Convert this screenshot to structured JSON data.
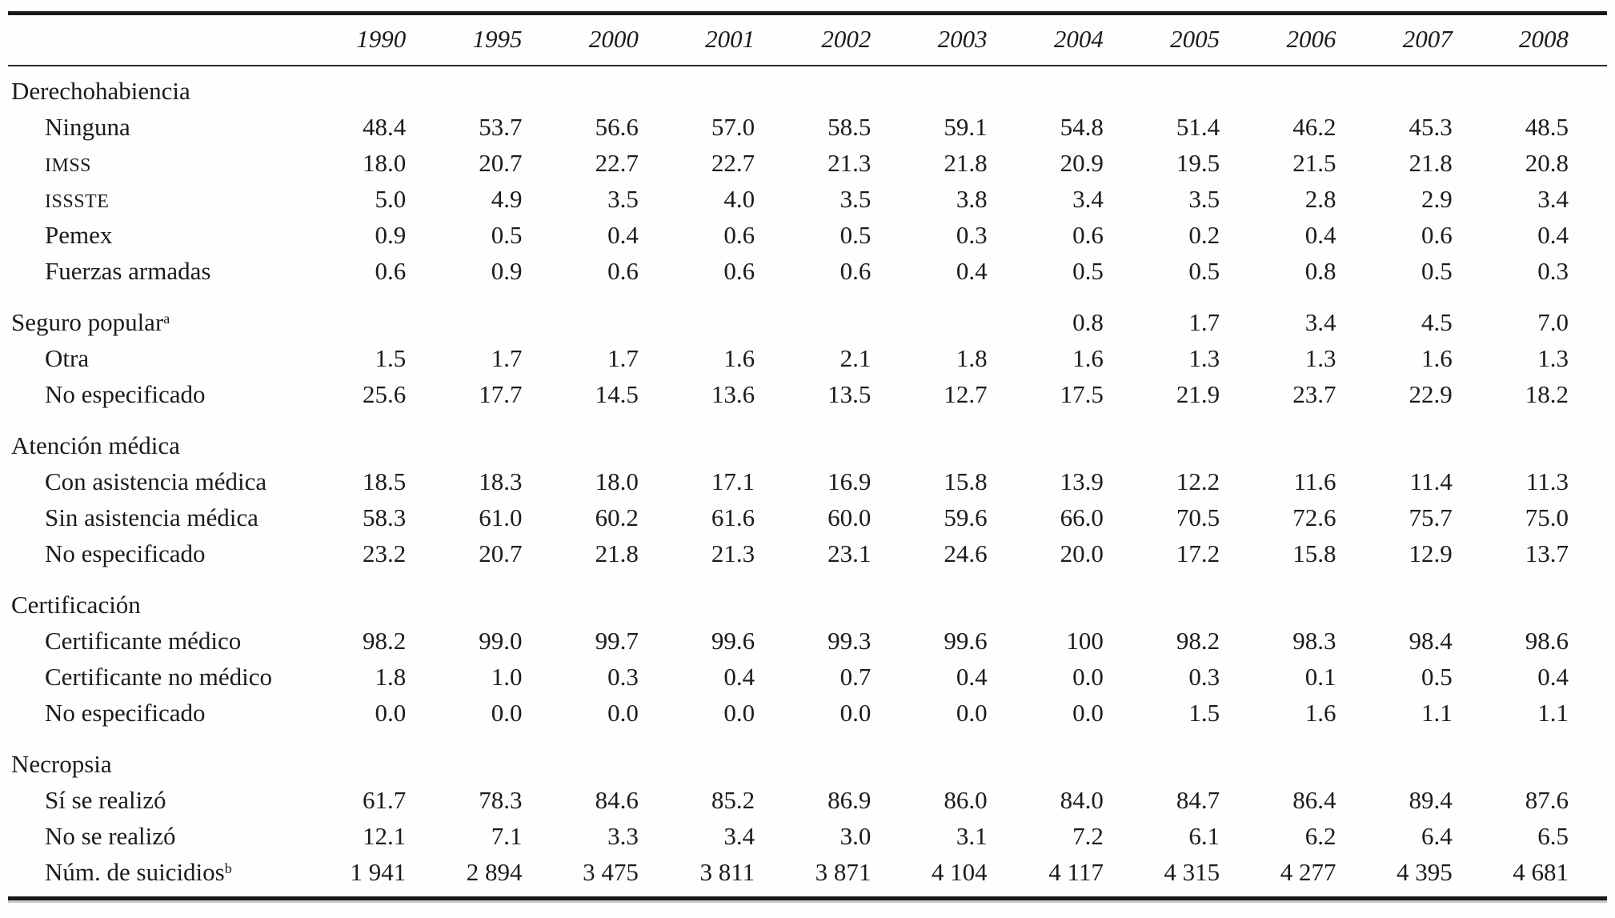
{
  "table": {
    "columns": [
      "1990",
      "1995",
      "2000",
      "2001",
      "2002",
      "2003",
      "2004",
      "2005",
      "2006",
      "2007",
      "2008"
    ],
    "sections": [
      {
        "header": {
          "label": "Derechohabiencia",
          "sup": "",
          "values": [
            "",
            "",
            "",
            "",
            "",
            "",
            "",
            "",
            "",
            "",
            ""
          ]
        },
        "rows": [
          {
            "label": "Ninguna",
            "style": "item",
            "sup": "",
            "values": [
              "48.4",
              "53.7",
              "56.6",
              "57.0",
              "58.5",
              "59.1",
              "54.8",
              "51.4",
              "46.2",
              "45.3",
              "48.5"
            ]
          },
          {
            "label": "IMSS",
            "style": "acronym",
            "sup": "",
            "values": [
              "18.0",
              "20.7",
              "22.7",
              "22.7",
              "21.3",
              "21.8",
              "20.9",
              "19.5",
              "21.5",
              "21.8",
              "20.8"
            ]
          },
          {
            "label": "ISSSTE",
            "style": "acronym",
            "sup": "",
            "values": [
              "5.0",
              "4.9",
              "3.5",
              "4.0",
              "3.5",
              "3.8",
              "3.4",
              "3.5",
              "2.8",
              "2.9",
              "3.4"
            ]
          },
          {
            "label": "Pemex",
            "style": "item",
            "sup": "",
            "values": [
              "0.9",
              "0.5",
              "0.4",
              "0.6",
              "0.5",
              "0.3",
              "0.6",
              "0.2",
              "0.4",
              "0.6",
              "0.4"
            ]
          },
          {
            "label": "Fuerzas armadas",
            "style": "item",
            "sup": "",
            "values": [
              "0.6",
              "0.9",
              "0.6",
              "0.6",
              "0.6",
              "0.4",
              "0.5",
              "0.5",
              "0.8",
              "0.5",
              "0.3"
            ]
          }
        ]
      },
      {
        "header": {
          "label": "Seguro popular",
          "sup": "a",
          "values": [
            "",
            "",
            "",
            "",
            "",
            "",
            "0.8",
            "1.7",
            "3.4",
            "4.5",
            "7.0"
          ]
        },
        "rows": [
          {
            "label": "Otra",
            "style": "item",
            "sup": "",
            "values": [
              "1.5",
              "1.7",
              "1.7",
              "1.6",
              "2.1",
              "1.8",
              "1.6",
              "1.3",
              "1.3",
              "1.6",
              "1.3"
            ]
          },
          {
            "label": "No especificado",
            "style": "item",
            "sup": "",
            "values": [
              "25.6",
              "17.7",
              "14.5",
              "13.6",
              "13.5",
              "12.7",
              "17.5",
              "21.9",
              "23.7",
              "22.9",
              "18.2"
            ]
          }
        ]
      },
      {
        "header": {
          "label": "Atención médica",
          "sup": "",
          "values": [
            "",
            "",
            "",
            "",
            "",
            "",
            "",
            "",
            "",
            "",
            ""
          ]
        },
        "rows": [
          {
            "label": "Con asistencia médica",
            "style": "item",
            "sup": "",
            "values": [
              "18.5",
              "18.3",
              "18.0",
              "17.1",
              "16.9",
              "15.8",
              "13.9",
              "12.2",
              "11.6",
              "11.4",
              "11.3"
            ]
          },
          {
            "label": "Sin asistencia médica",
            "style": "item",
            "sup": "",
            "values": [
              "58.3",
              "61.0",
              "60.2",
              "61.6",
              "60.0",
              "59.6",
              "66.0",
              "70.5",
              "72.6",
              "75.7",
              "75.0"
            ]
          },
          {
            "label": "No especificado",
            "style": "item",
            "sup": "",
            "values": [
              "23.2",
              "20.7",
              "21.8",
              "21.3",
              "23.1",
              "24.6",
              "20.0",
              "17.2",
              "15.8",
              "12.9",
              "13.7"
            ]
          }
        ]
      },
      {
        "header": {
          "label": "Certificación",
          "sup": "",
          "values": [
            "",
            "",
            "",
            "",
            "",
            "",
            "",
            "",
            "",
            "",
            ""
          ]
        },
        "rows": [
          {
            "label": "Certificante médico",
            "style": "item",
            "sup": "",
            "values": [
              "98.2",
              "99.0",
              "99.7",
              "99.6",
              "99.3",
              "99.6",
              "100",
              "98.2",
              "98.3",
              "98.4",
              "98.6"
            ]
          },
          {
            "label": "Certificante no médico",
            "style": "item",
            "sup": "",
            "values": [
              "1.8",
              "1.0",
              "0.3",
              "0.4",
              "0.7",
              "0.4",
              "0.0",
              "0.3",
              "0.1",
              "0.5",
              "0.4"
            ]
          },
          {
            "label": "No especificado",
            "style": "item",
            "sup": "",
            "values": [
              "0.0",
              "0.0",
              "0.0",
              "0.0",
              "0.0",
              "0.0",
              "0.0",
              "1.5",
              "1.6",
              "1.1",
              "1.1"
            ]
          }
        ]
      },
      {
        "header": {
          "label": "Necropsia",
          "sup": "",
          "values": [
            "",
            "",
            "",
            "",
            "",
            "",
            "",
            "",
            "",
            "",
            ""
          ]
        },
        "rows": [
          {
            "label": "Sí se realizó",
            "style": "item",
            "sup": "",
            "values": [
              "61.7",
              "78.3",
              "84.6",
              "85.2",
              "86.9",
              "86.0",
              "84.0",
              "84.7",
              "86.4",
              "89.4",
              "87.6"
            ]
          },
          {
            "label": "No se realizó",
            "style": "item",
            "sup": "",
            "values": [
              "12.1",
              "7.1",
              "3.3",
              "3.4",
              "3.0",
              "3.1",
              "7.2",
              "6.1",
              "6.2",
              "6.4",
              "6.5"
            ]
          },
          {
            "label": "Núm. de suicidios",
            "style": "item",
            "sup": "b",
            "values": [
              "1 941",
              "2 894",
              "3 475",
              "3 811",
              "3 871",
              "4 104",
              "4 117",
              "4 315",
              "4 277",
              "4 395",
              "4 681"
            ]
          }
        ]
      }
    ],
    "colors": {
      "text": "#1b1b1b",
      "rule": "#191919",
      "background": "#fefefe"
    }
  }
}
